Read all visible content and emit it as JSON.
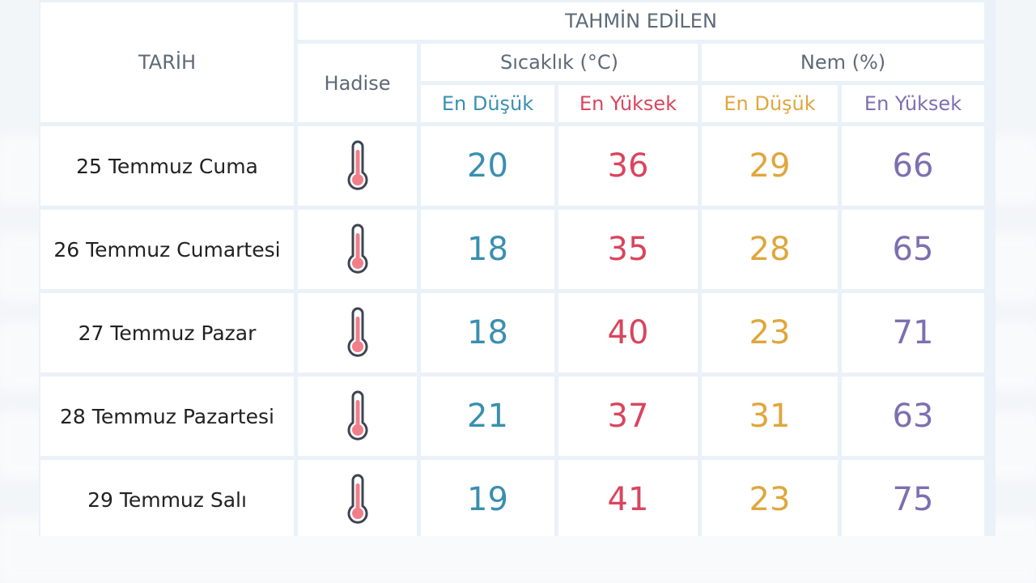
{
  "header": {
    "tahmin": "TAHMİN EDİLEN",
    "tarih": "TARİH",
    "hadise": "Hadise",
    "sicaklik": "Sıcaklık (°C)",
    "nem": "Nem (%)",
    "sub": {
      "sicaklik_min": "En Düşük",
      "sicaklik_max": "En Yüksek",
      "nem_min": "En Düşük",
      "nem_max": "En Yüksek"
    }
  },
  "rows": [
    {
      "date": "25 Temmuz Cuma",
      "hadise_icon": "thermometer-icon",
      "t_min": "20",
      "t_max": "36",
      "n_min": "29",
      "n_max": "66"
    },
    {
      "date": "26 Temmuz Cumartesi",
      "hadise_icon": "thermometer-icon",
      "t_min": "18",
      "t_max": "35",
      "n_min": "28",
      "n_max": "65"
    },
    {
      "date": "27 Temmuz Pazar",
      "hadise_icon": "thermometer-icon",
      "t_min": "18",
      "t_max": "40",
      "n_min": "23",
      "n_max": "71"
    },
    {
      "date": "28 Temmuz Pazartesi",
      "hadise_icon": "thermometer-icon",
      "t_min": "21",
      "t_max": "37",
      "n_min": "31",
      "n_max": "63"
    },
    {
      "date": "29 Temmuz Salı",
      "hadise_icon": "thermometer-icon",
      "t_min": "19",
      "t_max": "41",
      "n_min": "23",
      "n_max": "75"
    }
  ],
  "colors": {
    "low_temp": "#3a8fb0",
    "high_temp": "#d9455e",
    "low_humidity": "#e0a63c",
    "high_humidity": "#7d6fb0"
  }
}
